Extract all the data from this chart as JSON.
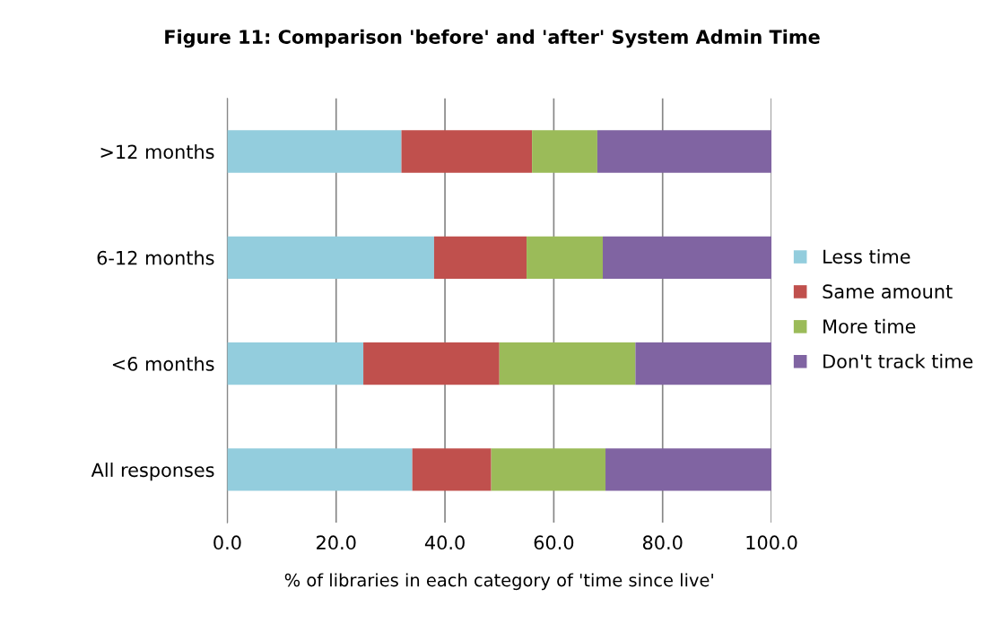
{
  "chart_data": {
    "type": "bar",
    "orientation": "horizontal",
    "stacked": true,
    "title": "Figure 11: Comparison 'before' and 'after' System Admin Time",
    "xlabel": "% of libraries in each category of 'time since live'",
    "categories": [
      ">12 months",
      "6-12 months",
      "<6 months",
      "All responses"
    ],
    "series": [
      {
        "name": "Less time",
        "color": "#93cddd",
        "values": [
          32,
          38,
          25,
          34
        ]
      },
      {
        "name": "Same amount",
        "color": "#c0504d",
        "values": [
          24,
          17,
          25,
          14.5
        ]
      },
      {
        "name": "More time",
        "color": "#9bbb59",
        "values": [
          12,
          14,
          25,
          21
        ]
      },
      {
        "name": "Don't track time",
        "color": "#8064a2",
        "values": [
          32,
          31,
          25,
          30.5
        ]
      }
    ],
    "xlim": [
      0,
      100
    ],
    "xticks": [
      {
        "value": 0,
        "label": "0.0"
      },
      {
        "value": 20,
        "label": "20.0"
      },
      {
        "value": 40,
        "label": "40.0"
      },
      {
        "value": 60,
        "label": "60.0"
      },
      {
        "value": 80,
        "label": "80.0"
      },
      {
        "value": 100,
        "label": "100.0"
      }
    ],
    "grid": "x",
    "legend": "right"
  }
}
